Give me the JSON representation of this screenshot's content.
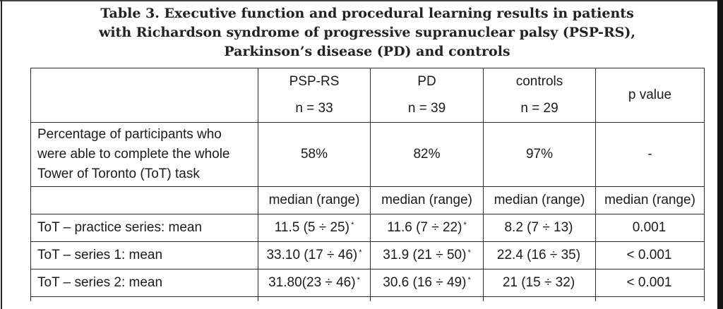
{
  "title": {
    "line1": "Table 3. Executive function and procedural learning results in patients",
    "line2": "with Richardson syndrome of progressive supranuclear palsy (PSP-RS),",
    "line3": "Parkinson’s disease (PD) and controls"
  },
  "table": {
    "columns": [
      {
        "name": "PSP-RS",
        "n": "n = 33"
      },
      {
        "name": "PD",
        "n": "n = 39"
      },
      {
        "name": "controls",
        "n": "n = 29"
      },
      {
        "name": "p value",
        "n": ""
      }
    ],
    "completion": {
      "label": "Percentage of participants who were able to complete the whole Tower of Toronto (ToT) task",
      "label_lines": [
        "Percentage of participants who",
        "were able to complete the whole",
        "Tower of Toronto (ToT) task"
      ],
      "values": [
        "58%",
        "82%",
        "97%",
        "-"
      ]
    },
    "median_header": [
      "median (range)",
      "median (range)",
      "median (range)",
      "median (range)"
    ],
    "rows": [
      {
        "label": "ToT – practice series: mean",
        "cells": [
          {
            "text": "11.5 (5 ÷ 25)",
            "mark": "*"
          },
          {
            "text": "11.6 (7 ÷ 22)",
            "mark": "*"
          },
          {
            "text": "8.2 (7 ÷ 13)",
            "mark": ""
          },
          {
            "text": "0.001",
            "mark": ""
          }
        ]
      },
      {
        "label": "ToT – series 1: mean",
        "cells": [
          {
            "text": "33.10 (17 ÷ 46)",
            "mark": "*"
          },
          {
            "text": "31.9 (21 ÷ 50)",
            "mark": "*"
          },
          {
            "text": "22.4 (16 ÷ 35)",
            "mark": ""
          },
          {
            "text": "< 0.001",
            "mark": ""
          }
        ]
      },
      {
        "label": "ToT – series 2: mean",
        "cells": [
          {
            "text": "31.80(23 ÷ 46)",
            "mark": "*"
          },
          {
            "text": "30.6 (16 ÷ 49)",
            "mark": "*"
          },
          {
            "text": "21 (15 ÷ 32)",
            "mark": ""
          },
          {
            "text": "< 0.001",
            "mark": ""
          }
        ]
      }
    ]
  }
}
